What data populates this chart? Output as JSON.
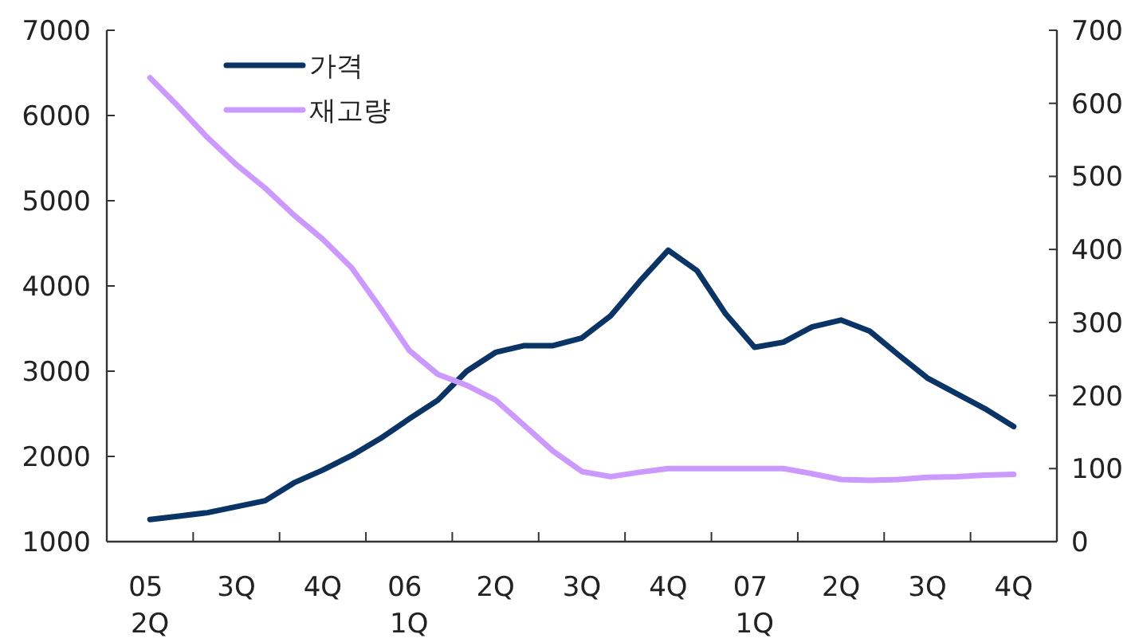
{
  "chart_data": {
    "type": "line",
    "categories": [
      "05 2Q",
      null,
      null,
      "3Q",
      null,
      null,
      "4Q",
      null,
      null,
      "06 1Q",
      null,
      null,
      "2Q",
      null,
      null,
      "3Q",
      null,
      null,
      "4Q",
      null,
      null,
      "07 1Q",
      null,
      null,
      "2Q",
      null,
      null,
      "3Q",
      null,
      null,
      "4Q"
    ],
    "series": [
      {
        "name": "가격",
        "color": "#0b3466",
        "values": [
          1260,
          1300,
          1340,
          1410,
          1480,
          1690,
          1840,
          2010,
          2210,
          2440,
          2660,
          3000,
          3220,
          3300,
          3300,
          3390,
          3650,
          4050,
          4420,
          4180,
          3670,
          3280,
          3340,
          3520,
          3600,
          3470,
          3190,
          2920,
          2740,
          2560,
          2350
        ]
      },
      {
        "name": "재고량",
        "color": "#cc99ff",
        "axis": "y2",
        "values": [
          635,
          595,
          553,
          516,
          484,
          447,
          414,
          375,
          320,
          262,
          229,
          214,
          194,
          159,
          124,
          96,
          89,
          95,
          100,
          100,
          100,
          100,
          100,
          93,
          85,
          84,
          85,
          88,
          89,
          91,
          92
        ]
      }
    ],
    "ylim": [
      1000,
      7000
    ],
    "yticks": [
      1000,
      2000,
      3000,
      4000,
      5000,
      6000,
      7000
    ],
    "y2lim": [
      0,
      700
    ],
    "y2ticks": [
      0,
      100,
      200,
      300,
      400,
      500,
      600,
      700
    ],
    "legend": "top left"
  }
}
